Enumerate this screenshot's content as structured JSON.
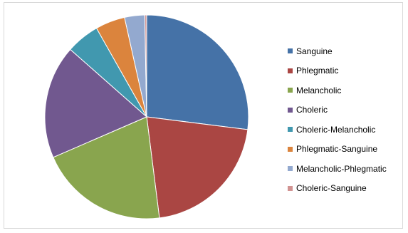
{
  "chart_data": {
    "type": "pie",
    "title": "",
    "categories": [
      "Sanguine",
      "Phlegmatic",
      "Melancholic",
      "Choleric",
      "Choleric-Melancholic",
      "Phlegmatic-Sanguine",
      "Melancholic-Phlegmatic",
      "Choleric-Sanguine"
    ],
    "values": [
      27,
      21,
      20.5,
      18,
      5.3,
      4.7,
      3.2,
      0.3
    ],
    "unit": "percent",
    "colors": [
      "#4572A7",
      "#AA4643",
      "#89A54E",
      "#71588F",
      "#4198AF",
      "#DB843D",
      "#93A9CF",
      "#D19392"
    ],
    "slice_stroke": "#ffffff",
    "start_angle": "12 o'clock",
    "direction": "clockwise",
    "legend_position": "right",
    "data_labels": false
  }
}
